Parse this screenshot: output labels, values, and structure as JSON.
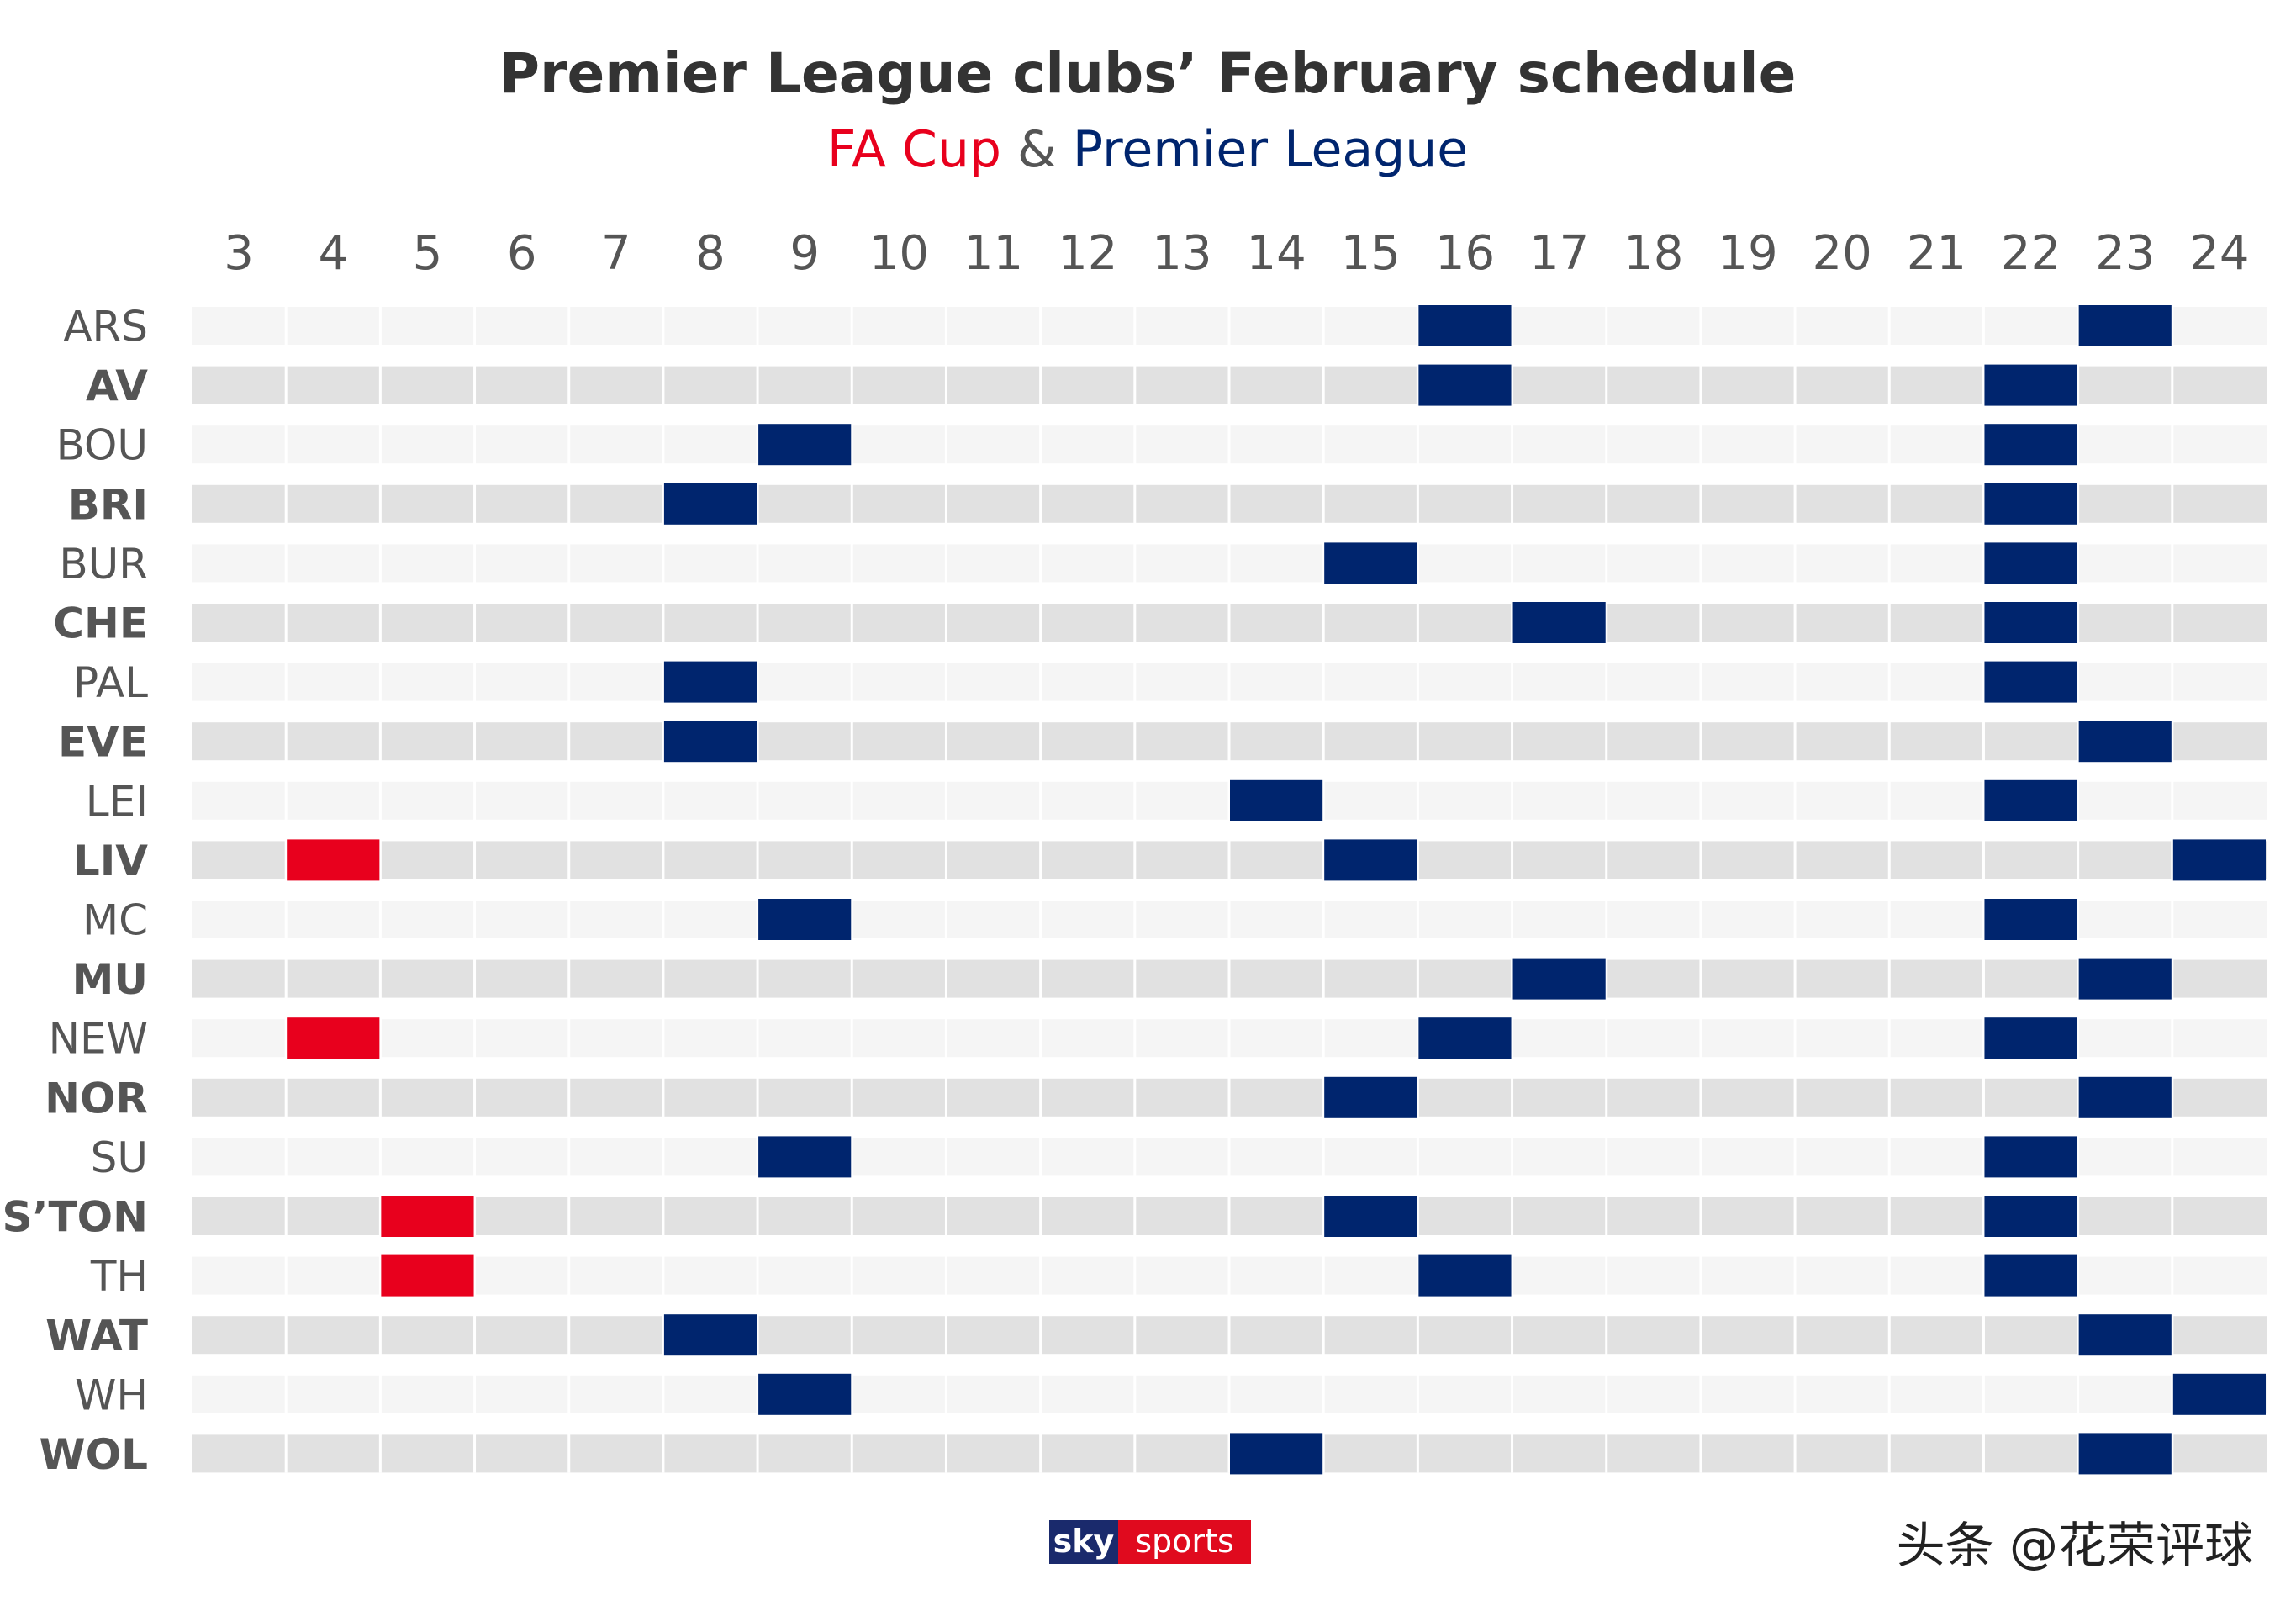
{
  "chart_data": {
    "type": "heatmap",
    "title": "Premier League clubs’ February schedule",
    "subtitle": {
      "part1": "FA Cup",
      "separator": " & ",
      "part2": "Premier League"
    },
    "x": [
      3,
      4,
      5,
      6,
      7,
      8,
      9,
      10,
      11,
      12,
      13,
      14,
      15,
      16,
      17,
      18,
      19,
      20,
      21,
      22,
      23,
      24
    ],
    "legend": [
      {
        "name": "FA Cup",
        "color": "#e8001d"
      },
      {
        "name": "Premier League",
        "color": "#00256e"
      }
    ],
    "clubs": [
      {
        "name": "ARS",
        "bold": false,
        "fa_cup": [],
        "premier_league": [
          16,
          23
        ]
      },
      {
        "name": "AV",
        "bold": true,
        "fa_cup": [],
        "premier_league": [
          16,
          22
        ]
      },
      {
        "name": "BOU",
        "bold": false,
        "fa_cup": [],
        "premier_league": [
          9,
          22
        ]
      },
      {
        "name": "BRI",
        "bold": true,
        "fa_cup": [],
        "premier_league": [
          8,
          22
        ]
      },
      {
        "name": "BUR",
        "bold": false,
        "fa_cup": [],
        "premier_league": [
          15,
          22
        ]
      },
      {
        "name": "CHE",
        "bold": true,
        "fa_cup": [],
        "premier_league": [
          17,
          22
        ]
      },
      {
        "name": "PAL",
        "bold": false,
        "fa_cup": [],
        "premier_league": [
          8,
          22
        ]
      },
      {
        "name": "EVE",
        "bold": true,
        "fa_cup": [],
        "premier_league": [
          8,
          23
        ]
      },
      {
        "name": "LEI",
        "bold": false,
        "fa_cup": [],
        "premier_league": [
          14,
          22
        ]
      },
      {
        "name": "LIV",
        "bold": true,
        "fa_cup": [
          4
        ],
        "premier_league": [
          15,
          24
        ]
      },
      {
        "name": "MC",
        "bold": false,
        "fa_cup": [],
        "premier_league": [
          9,
          22
        ]
      },
      {
        "name": "MU",
        "bold": true,
        "fa_cup": [],
        "premier_league": [
          17,
          23
        ]
      },
      {
        "name": "NEW",
        "bold": false,
        "fa_cup": [
          4
        ],
        "premier_league": [
          16,
          22
        ]
      },
      {
        "name": "NOR",
        "bold": true,
        "fa_cup": [],
        "premier_league": [
          15,
          23
        ]
      },
      {
        "name": "SU",
        "bold": false,
        "fa_cup": [],
        "premier_league": [
          9,
          22
        ]
      },
      {
        "name": "S’TON",
        "bold": true,
        "fa_cup": [
          5
        ],
        "premier_league": [
          15,
          22
        ]
      },
      {
        "name": "TH",
        "bold": false,
        "fa_cup": [
          5
        ],
        "premier_league": [
          16,
          22
        ]
      },
      {
        "name": "WAT",
        "bold": true,
        "fa_cup": [],
        "premier_league": [
          8,
          23
        ]
      },
      {
        "name": "WH",
        "bold": false,
        "fa_cup": [],
        "premier_league": [
          9,
          24
        ]
      },
      {
        "name": "WOL",
        "bold": true,
        "fa_cup": [],
        "premier_league": [
          14,
          23
        ]
      }
    ],
    "row_colors": [
      "#f5f5f5",
      "#e1e1e1"
    ],
    "grid": true
  },
  "colors": {
    "title": "#333333",
    "fa_cup": "#e8001d",
    "premier_league": "#00256e",
    "separator": "#555555",
    "label": "#555555"
  },
  "logo": {
    "part1": "sky",
    "part2": "sports"
  },
  "watermark": "头条 @花荣评球"
}
